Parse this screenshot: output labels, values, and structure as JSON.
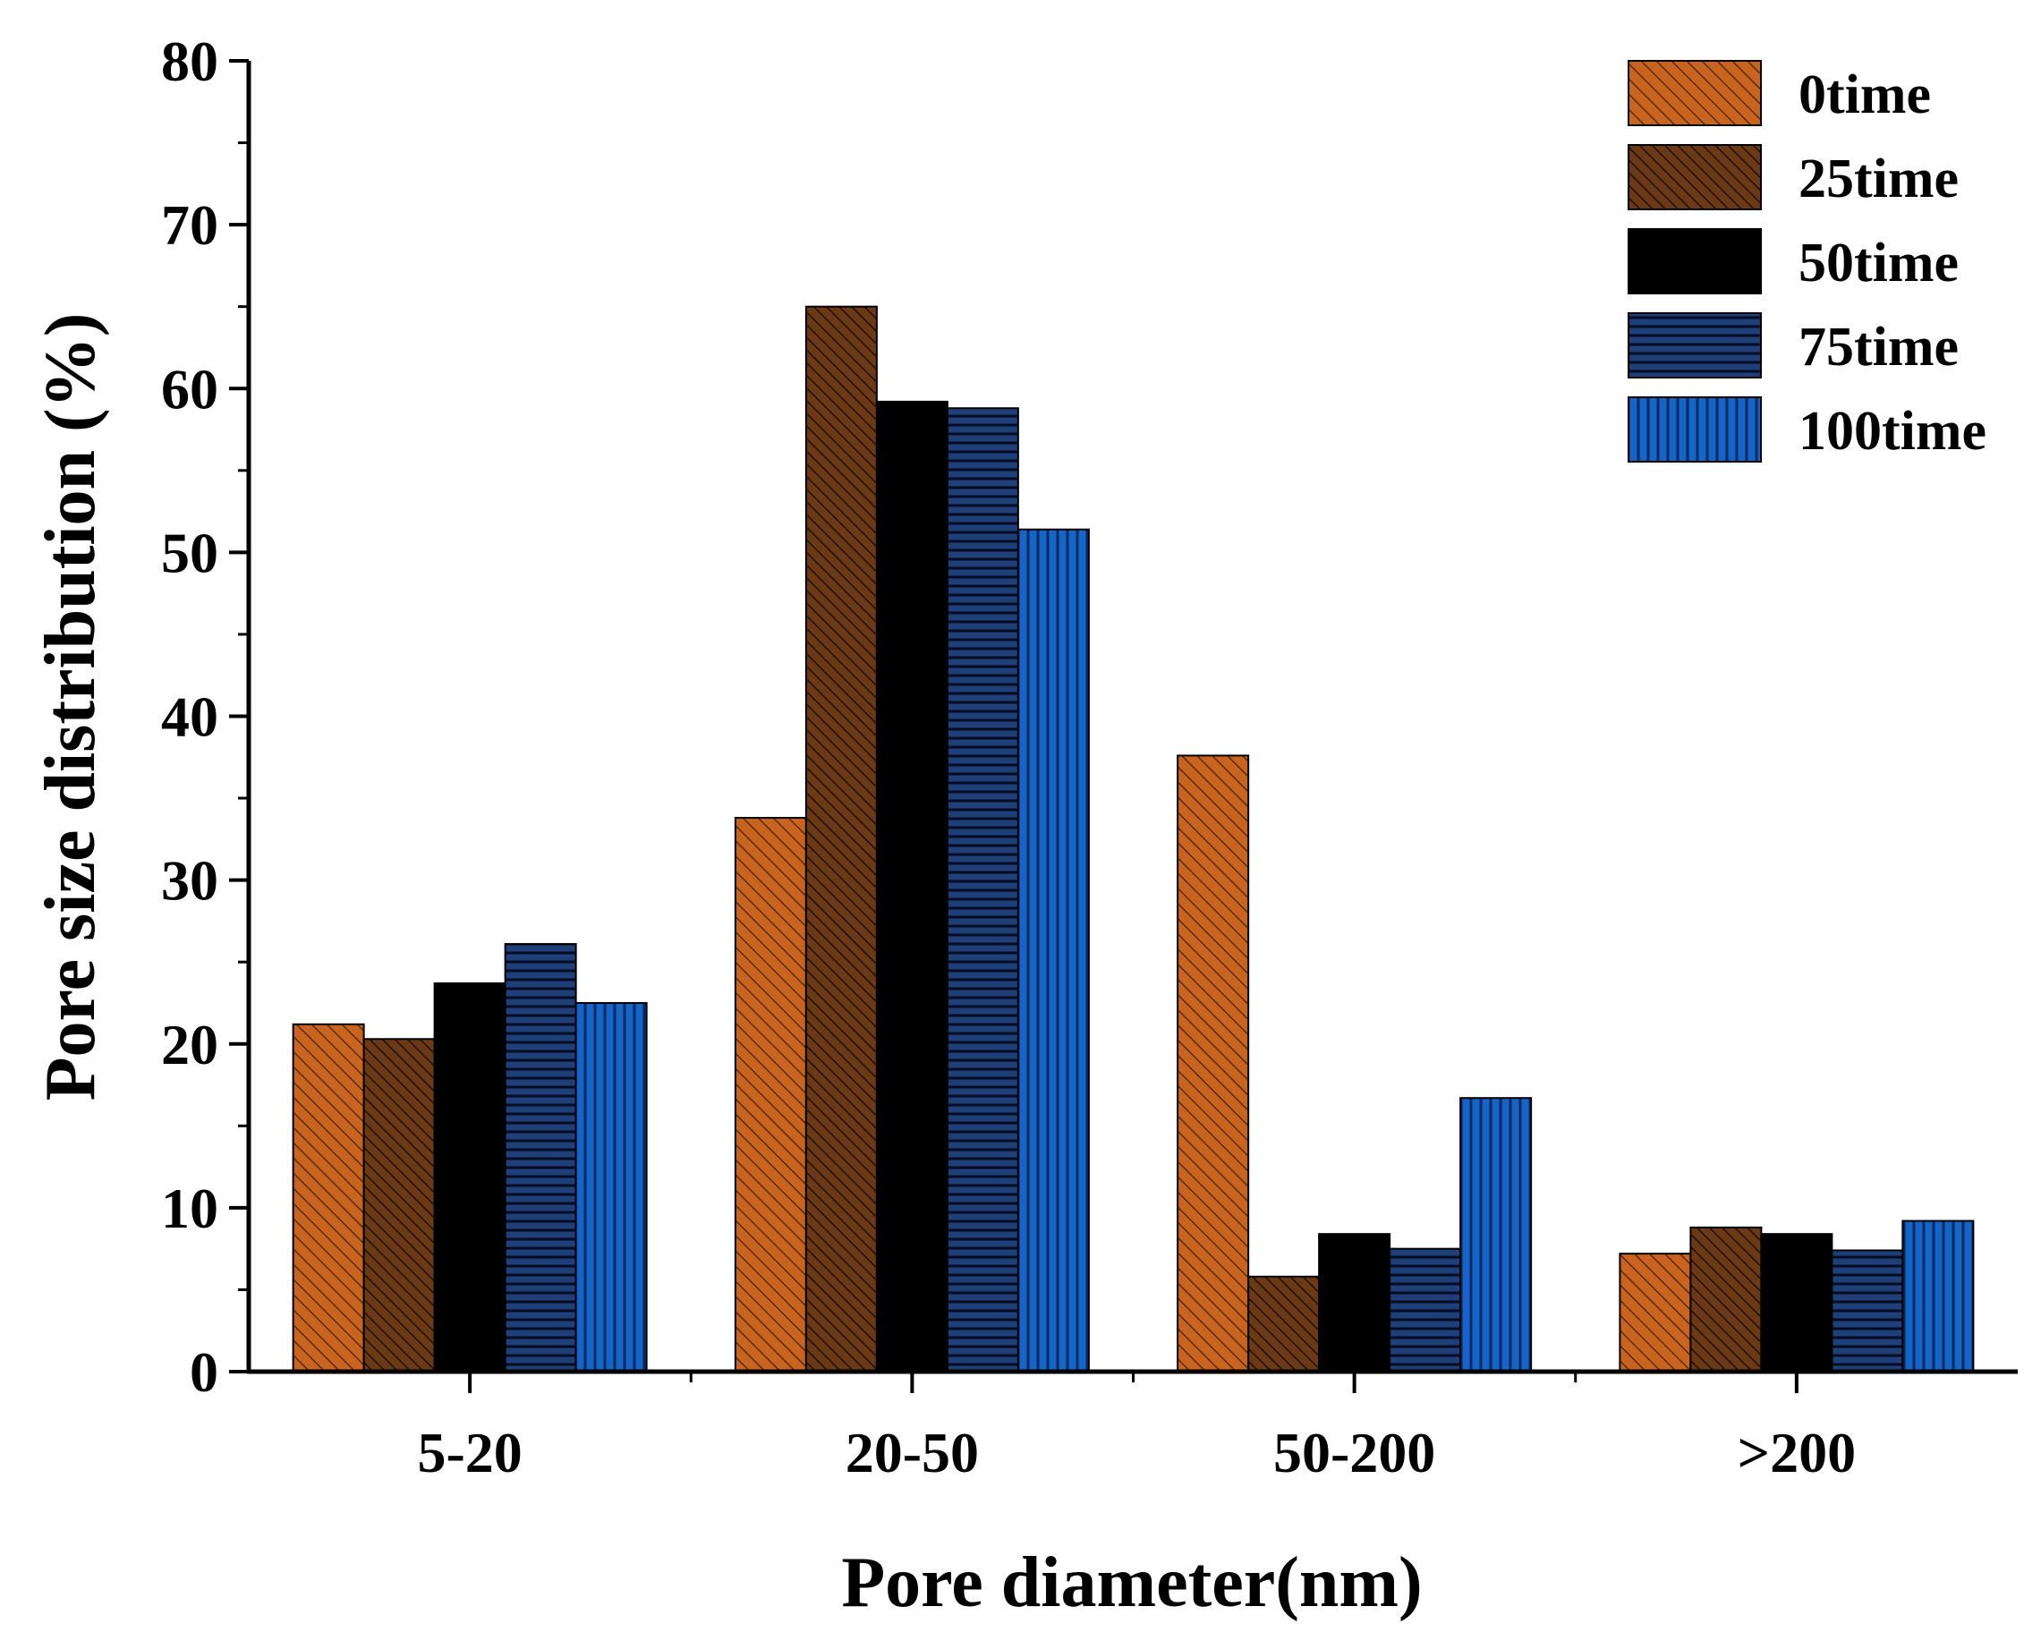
{
  "chart_data": {
    "type": "bar",
    "title": "",
    "xlabel": "Pore diameter(nm)",
    "ylabel": "Pore size distribution (%)",
    "ylim": [
      0,
      80
    ],
    "yticks": [
      0,
      10,
      20,
      30,
      40,
      50,
      60,
      70,
      80
    ],
    "categories": [
      "5-20",
      "20-50",
      "50-200",
      ">200"
    ],
    "legend_position": "top-right",
    "series": [
      {
        "name": "0time",
        "color": "#c8641e",
        "pattern": "diagonal-right",
        "values": [
          21.2,
          33.8,
          37.6,
          7.2
        ]
      },
      {
        "name": "25time",
        "color": "#6b3a14",
        "pattern": "diagonal-right-dense",
        "values": [
          20.3,
          65.0,
          5.8,
          8.8
        ]
      },
      {
        "name": "50time",
        "color": "#000000",
        "pattern": "solid",
        "values": [
          23.7,
          59.2,
          8.4,
          8.4
        ]
      },
      {
        "name": "75time",
        "color": "#1f3f78",
        "pattern": "horizontal",
        "values": [
          26.1,
          58.8,
          7.5,
          7.4
        ]
      },
      {
        "name": "100time",
        "color": "#1565c8",
        "pattern": "vertical",
        "values": [
          22.5,
          51.4,
          16.7,
          9.2
        ]
      }
    ]
  }
}
